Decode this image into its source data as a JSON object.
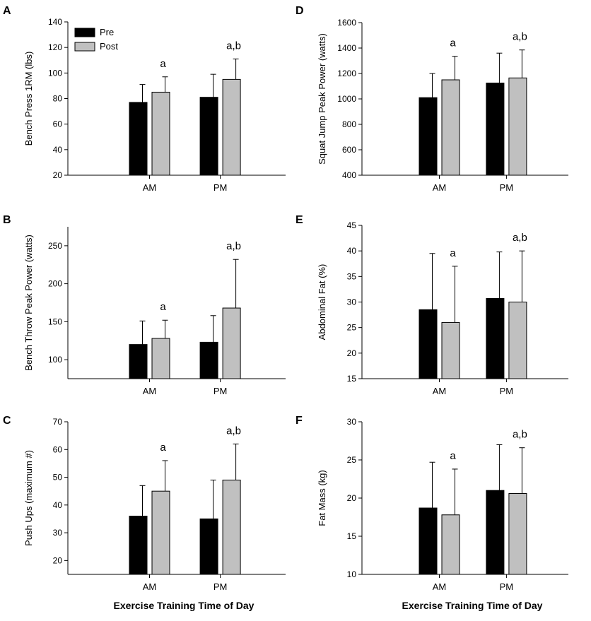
{
  "colors": {
    "pre": "#000000",
    "post": "#c0c0c0",
    "axis": "#000000"
  },
  "legend": {
    "pre": "Pre",
    "post": "Post"
  },
  "x_title": "Exercise Training Time of Day",
  "chart_data": [
    {
      "id": "A",
      "type": "bar",
      "letter": "A",
      "ylabel": "Bench Press 1RM (lbs)",
      "ylim": [
        20,
        140
      ],
      "yticks": [
        20,
        40,
        60,
        80,
        100,
        120,
        140
      ],
      "categories": [
        "AM",
        "PM"
      ],
      "series": [
        {
          "name": "Pre",
          "values": [
            77,
            81
          ],
          "errors": [
            14,
            18
          ]
        },
        {
          "name": "Post",
          "values": [
            85,
            95
          ],
          "errors": [
            12,
            16
          ]
        }
      ],
      "annotations": [
        "a",
        "a,b"
      ],
      "legend": "top-left"
    },
    {
      "id": "B",
      "type": "bar",
      "letter": "B",
      "ylabel": "Bench Throw Peak Power (watts)",
      "ylim": [
        75,
        275
      ],
      "yticks": [
        100,
        150,
        200,
        250
      ],
      "categories": [
        "AM",
        "PM"
      ],
      "series": [
        {
          "name": "Pre",
          "values": [
            120,
            123
          ],
          "errors": [
            31,
            35
          ]
        },
        {
          "name": "Post",
          "values": [
            128,
            168
          ],
          "errors": [
            24,
            64
          ]
        }
      ],
      "annotations": [
        "a",
        "a,b"
      ]
    },
    {
      "id": "C",
      "type": "bar",
      "letter": "C",
      "ylabel": "Push Ups (maximum #)",
      "ylim": [
        15,
        70
      ],
      "yticks": [
        20,
        30,
        40,
        50,
        60,
        70
      ],
      "categories": [
        "AM",
        "PM"
      ],
      "series": [
        {
          "name": "Pre",
          "values": [
            36,
            35
          ],
          "errors": [
            11,
            14
          ]
        },
        {
          "name": "Post",
          "values": [
            45,
            49
          ],
          "errors": [
            11,
            13
          ]
        }
      ],
      "annotations": [
        "a",
        "a,b"
      ]
    },
    {
      "id": "D",
      "type": "bar",
      "letter": "D",
      "ylabel": "Squat Jump Peak Power (watts)",
      "ylim": [
        400,
        1600
      ],
      "yticks": [
        400,
        600,
        800,
        1000,
        1200,
        1400,
        1600
      ],
      "categories": [
        "AM",
        "PM"
      ],
      "series": [
        {
          "name": "Pre",
          "values": [
            1010,
            1125
          ],
          "errors": [
            190,
            235
          ]
        },
        {
          "name": "Post",
          "values": [
            1150,
            1165
          ],
          "errors": [
            185,
            220
          ]
        }
      ],
      "annotations": [
        "a",
        "a,b"
      ]
    },
    {
      "id": "E",
      "type": "bar",
      "letter": "E",
      "ylabel": "Abdominal Fat (%)",
      "ylim": [
        15,
        45
      ],
      "yticks": [
        15,
        20,
        25,
        30,
        35,
        40,
        45
      ],
      "categories": [
        "AM",
        "PM"
      ],
      "series": [
        {
          "name": "Pre",
          "values": [
            28.5,
            30.7
          ],
          "errors": [
            11,
            9.1
          ]
        },
        {
          "name": "Post",
          "values": [
            26,
            30
          ],
          "errors": [
            11,
            10
          ]
        }
      ],
      "annotations": [
        "a",
        "a,b"
      ]
    },
    {
      "id": "F",
      "type": "bar",
      "letter": "F",
      "ylabel": "Fat Mass (kg)",
      "ylim": [
        10,
        30
      ],
      "yticks": [
        10,
        15,
        20,
        25,
        30
      ],
      "categories": [
        "AM",
        "PM"
      ],
      "series": [
        {
          "name": "Pre",
          "values": [
            18.7,
            21
          ],
          "errors": [
            6,
            6
          ]
        },
        {
          "name": "Post",
          "values": [
            17.8,
            20.6
          ],
          "errors": [
            6,
            6
          ]
        }
      ],
      "annotations": [
        "a",
        "a,b"
      ]
    }
  ]
}
